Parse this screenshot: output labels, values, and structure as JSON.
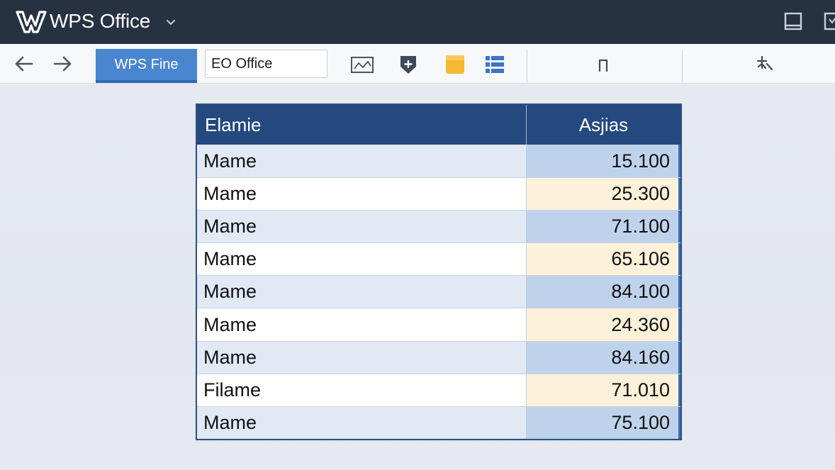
{
  "titlebar": {
    "app_title": "WPS Office",
    "logo_icon": "wps-logo-icon",
    "dropdown_icon": "chevron-down-icon",
    "background": "#263242"
  },
  "toolbar": {
    "back_icon": "arrow-left-icon",
    "forward_icon": "arrow-right-icon",
    "active_tab_label": "WPS Fine",
    "document_field_value": "EO Office",
    "icons": [
      "chart-icon",
      "shield-plus-icon",
      "folder-icon",
      "list-icon",
      "pause-icon",
      "pin-icon"
    ],
    "pause_glyph": "Π",
    "accent": "#4a86cf"
  },
  "table": {
    "headers": {
      "name": "Elamie",
      "value": "Asjias"
    },
    "header_color": "#23497f",
    "rows": [
      {
        "name": "Mame",
        "value": "15.100"
      },
      {
        "name": "Mame",
        "value": "25.300"
      },
      {
        "name": "Mame",
        "value": "71.100"
      },
      {
        "name": "Mame",
        "value": "65.106"
      },
      {
        "name": "Mame",
        "value": "84.100"
      },
      {
        "name": "Mame",
        "value": "24.360"
      },
      {
        "name": "Mame",
        "value": "84.160"
      },
      {
        "name": "Filame",
        "value": "71.010"
      },
      {
        "name": "Mame",
        "value": "75.100"
      }
    ]
  }
}
